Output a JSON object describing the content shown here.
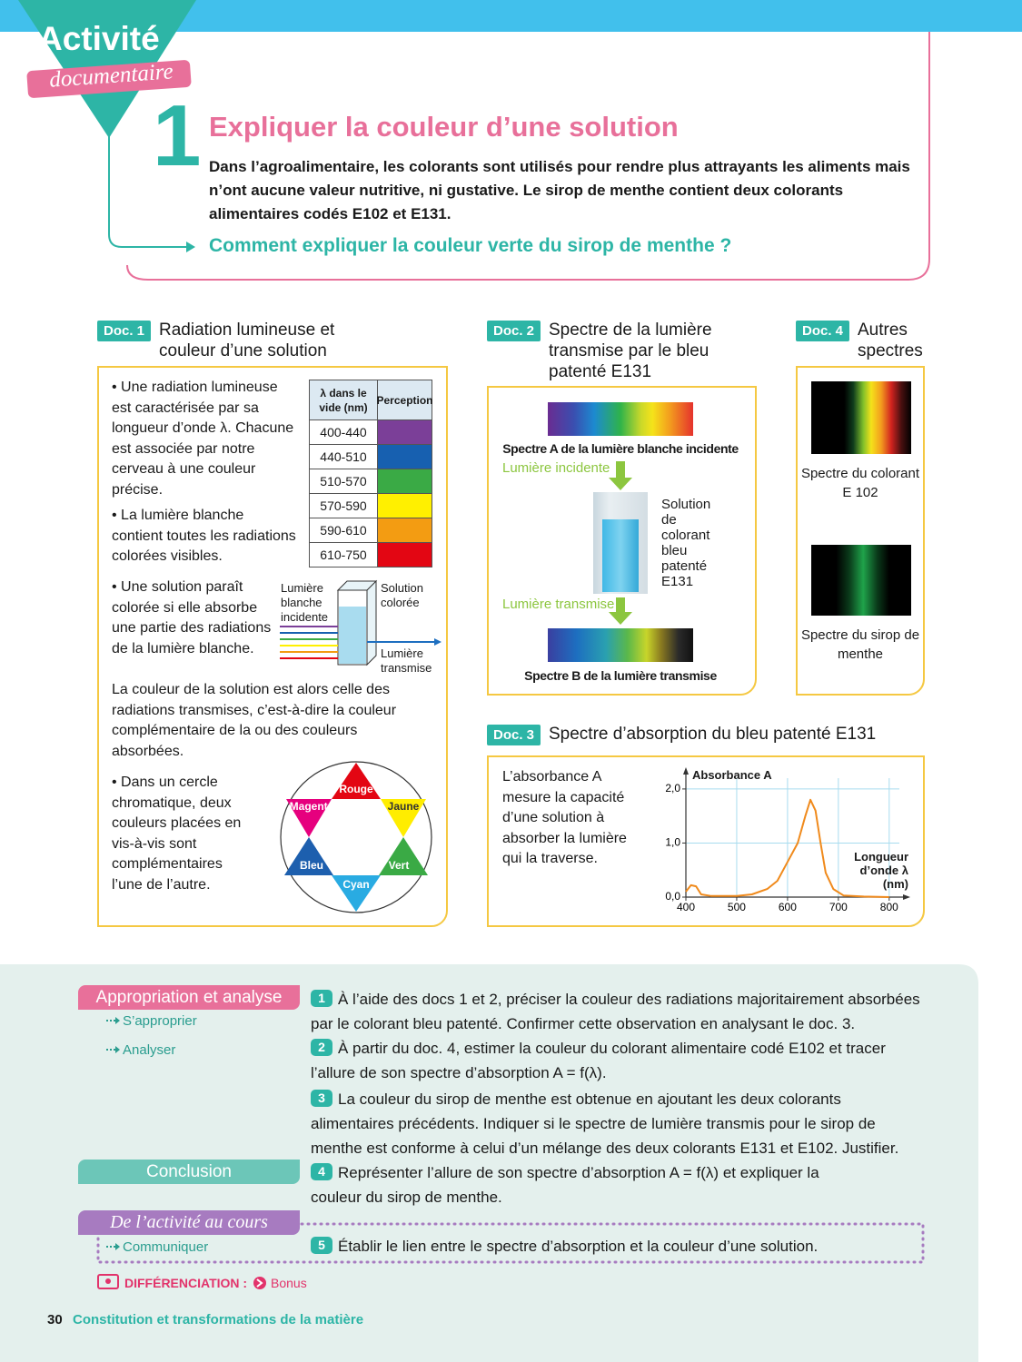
{
  "header": {
    "badge": "Activité",
    "badge_sub": "documentaire",
    "number": "1",
    "title": "Expliquer la couleur d’une solution",
    "intro": "Dans l’agroalimentaire, les colorants sont utilisés pour rendre plus attrayants les aliments mais n’ont aucune valeur nutritive, ni gustative. Le sirop de menthe contient deux colorants alimentaires codés E102 et E131.",
    "question": "Comment expliquer la couleur verte du sirop de menthe ?"
  },
  "doc1": {
    "label": "Doc. 1",
    "title": "Radiation lumineuse et couleur d’une solution",
    "text1": "• Une radiation lumineuse est caractérisée par sa longueur d’onde λ. Chacune est associée par notre cerveau à une couleur précise.",
    "text2": "• La lumière blanche contient toutes les radiations colorées visibles.",
    "table": {
      "header": [
        "λ dans le vide (nm)",
        "Perception"
      ],
      "rows": [
        "400-440",
        "440-510",
        "510-570",
        "570-590",
        "590-610",
        "610-750"
      ],
      "colors": [
        "#7b3f98",
        "#1760b0",
        "#3aaa45",
        "#fff000",
        "#f39c12",
        "#e30613"
      ]
    },
    "diagram": {
      "incident": "Lumière blanche incidente",
      "solution": "Solution colorée",
      "transmitted": "Lumière transmise"
    },
    "text3": "• Une solution paraît colorée si elle absorbe une partie des radiations de la lumière blanche.",
    "text4": "La couleur de la solution est alors celle des radiations transmises, c’est-à-dire la couleur complémentaire de la ou des couleurs absorbées.",
    "text5": "• Dans un cercle chromatique, deux couleurs placées en vis-à-vis sont complémentaires l’une de l’autre.",
    "wheel": [
      "Rouge",
      "Jaune",
      "Vert",
      "Cyan",
      "Bleu",
      "Magenta"
    ]
  },
  "doc2": {
    "label": "Doc. 2",
    "title": "Spectre de la lumière transmise par le bleu patenté E131",
    "spectrum_a": "Spectre A de la lumière blanche incidente",
    "incident": "Lumière incidente",
    "solution": "Solution de colorant bleu patenté E131",
    "transmitted": "Lumière transmise",
    "spectrum_b": "Spectre B de la lumière transmise"
  },
  "doc4": {
    "label": "Doc. 4",
    "title": "Autres spectres",
    "caption1": "Spectre du colorant E 102",
    "caption2": "Spectre du sirop de menthe"
  },
  "doc3": {
    "label": "Doc. 3",
    "title": "Spectre d’absorption du bleu patenté E131",
    "text": "L’absorbance A mesure la capacité d’une solution à absorber la lumière qui la traverse.",
    "chart": {
      "type": "line",
      "ylabel": "Absorbance A",
      "xlabel": "Longueur d’onde λ (nm)",
      "color": "#f08a1c",
      "x": [
        400,
        410,
        420,
        430,
        450,
        500,
        530,
        560,
        580,
        600,
        620,
        635,
        645,
        655,
        665,
        675,
        690,
        710,
        750,
        800
      ],
      "values": [
        0.1,
        0.22,
        0.2,
        0.05,
        0.02,
        0.02,
        0.05,
        0.15,
        0.3,
        0.65,
        1.0,
        1.5,
        1.8,
        1.6,
        1.0,
        0.45,
        0.15,
        0.03,
        0.01,
        0
      ],
      "xlim": [
        400,
        820
      ],
      "ylim": [
        0,
        2.2
      ],
      "xticks": [
        400,
        500,
        600,
        700,
        800
      ],
      "yticks": [
        {
          "value": 0,
          "label": "0,0"
        },
        {
          "value": 1,
          "label": "1,0"
        },
        {
          "value": 2,
          "label": "2,0"
        }
      ],
      "grid": true
    }
  },
  "questions": {
    "section1": "Appropriation et analyse",
    "skill1": "S’approprier",
    "skill2": "Analyser",
    "section2": "Conclusion",
    "section3": "De l’activité au cours",
    "skill3": "Communiquer",
    "items": [
      {
        "number": "1",
        "text": "À l’aide des docs 1 et 2, préciser la couleur des radiations majoritairement absorbées par le colorant bleu patenté. Confirmer cette observation en analysant le doc. 3."
      },
      {
        "number": "2",
        "text": "À partir du doc. 4, estimer la couleur du colorant alimentaire codé E102 et tracer l’allure de son spectre d’absorption A = f(λ)."
      },
      {
        "number": "3",
        "text": "La couleur du sirop de menthe est obtenue en ajoutant les deux colorants alimentaires précédents. Indiquer si le spectre de lumière transmis pour le sirop de menthe est conforme à celui d’un mélange des deux colorants E131 et E102. Justifier."
      },
      {
        "number": "4",
        "text": "Représenter l’allure de son spectre d’absorption A = f(λ) et expliquer la couleur du sirop de menthe."
      },
      {
        "number": "5",
        "text": "Établir le lien entre le spectre d’absorption et la couleur d’une solution."
      }
    ],
    "differentiation": "DIFFÉRENCIATION :",
    "bonus": "Bonus"
  },
  "footer": {
    "page": "30",
    "title": "Constitution et transformations de la matière"
  }
}
